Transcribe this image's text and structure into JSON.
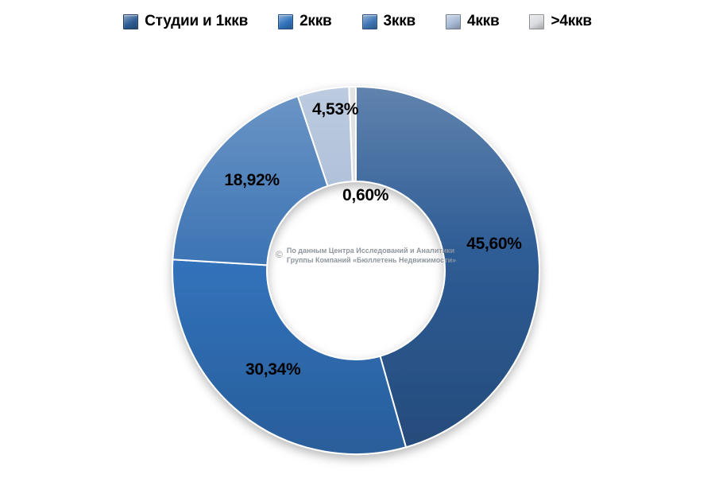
{
  "page": {
    "background": "#ffffff"
  },
  "watermark": {
    "symbol": "©",
    "line1": "По данным Центра Исследований и Аналитики",
    "line2": "Группы Компаний «Бюллетень Недвижимости»"
  },
  "chart_data": {
    "type": "pie",
    "subtype": "donut",
    "title": "",
    "categories": [
      "Студии и 1ккв",
      "2ккв",
      "3ккв",
      "4ккв",
      ">4ккв"
    ],
    "values": [
      45.6,
      30.34,
      18.92,
      4.53,
      0.6
    ],
    "value_labels": [
      "45,60%",
      "30,34%",
      "18,92%",
      "4,53%",
      "0,60%"
    ],
    "colors": [
      "#2E5C95",
      "#3273BD",
      "#3F76B5",
      "#A8BBD6",
      "#D9DBDF"
    ],
    "start_angle_deg": 0,
    "direction": "clockwise",
    "legend_position": "top",
    "hole_ratio": 0.48,
    "label_text_color": "#000000",
    "gap_color": "#ffffff"
  }
}
